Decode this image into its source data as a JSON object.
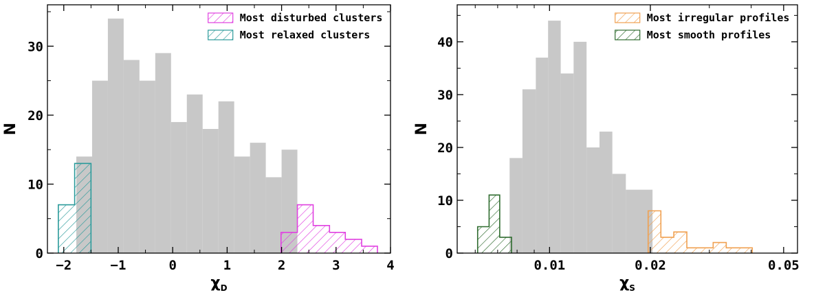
{
  "colors": {
    "background_hist": "#c8c8c8",
    "disturbed": "#e040e0",
    "relaxed": "#2a9a9a",
    "irregular": "#f0a050",
    "smooth": "#2e6b2e"
  },
  "chart_data": [
    {
      "type": "bar",
      "histogram": true,
      "xlabel": "χ_D",
      "xlabel_main": "χ",
      "xlabel_sub": "D",
      "ylabel": "N",
      "xlim": [
        -2.3,
        4.0
      ],
      "ylim": [
        0,
        36
      ],
      "xticks": [
        -2,
        -1,
        0,
        1,
        2,
        3,
        4
      ],
      "xtick_labels": [
        "−2",
        "−1",
        "0",
        "1",
        "2",
        "3",
        "4"
      ],
      "yticks": [
        0,
        10,
        20,
        30
      ],
      "ytick_labels": [
        "0",
        "10",
        "20",
        "30"
      ],
      "legend_position": "top-right",
      "series": [
        {
          "name": "",
          "style": "filled",
          "bins": [
            [
              -1.77,
              -1.48,
              14
            ],
            [
              -1.48,
              -1.19,
              25
            ],
            [
              -1.19,
              -0.9,
              34
            ],
            [
              -0.9,
              -0.61,
              28
            ],
            [
              -0.61,
              -0.32,
              25
            ],
            [
              -0.32,
              -0.03,
              29
            ],
            [
              -0.03,
              0.26,
              19
            ],
            [
              0.26,
              0.55,
              23
            ],
            [
              0.55,
              0.84,
              18
            ],
            [
              0.84,
              1.13,
              22
            ],
            [
              1.13,
              1.42,
              14
            ],
            [
              1.42,
              1.71,
              16
            ],
            [
              1.71,
              2.0,
              11
            ],
            [
              2.0,
              2.29,
              15
            ]
          ]
        },
        {
          "name": "Most disturbed clusters",
          "style": "hatched",
          "color_key": "disturbed",
          "bins": [
            [
              1.99,
              2.29,
              3
            ],
            [
              2.29,
              2.58,
              7
            ],
            [
              2.58,
              2.88,
              4
            ],
            [
              2.88,
              3.17,
              3
            ],
            [
              3.17,
              3.47,
              2
            ],
            [
              3.47,
              3.76,
              1
            ]
          ]
        },
        {
          "name": "Most relaxed clusters",
          "style": "hatched",
          "color_key": "relaxed",
          "bins": [
            [
              -2.1,
              -1.8,
              7
            ],
            [
              -1.8,
              -1.5,
              13
            ]
          ]
        }
      ]
    },
    {
      "type": "bar",
      "histogram": true,
      "xlabel": "χ_S",
      "xlabel_main": "χ",
      "xlabel_sub": "S",
      "ylabel": "N",
      "xscale": "log",
      "xlim": [
        0.0053,
        0.055
      ],
      "ylim": [
        0,
        47
      ],
      "xticks": [
        0.01,
        0.02,
        0.05
      ],
      "xtick_labels": [
        "0.01",
        "0.02",
        "0.05"
      ],
      "yticks": [
        0,
        10,
        20,
        30,
        40
      ],
      "ytick_labels": [
        "0",
        "10",
        "20",
        "30",
        "40"
      ],
      "legend_position": "top-right",
      "series": [
        {
          "name": "",
          "style": "filled",
          "bins": [
            [
              0.0076,
              0.0083,
              18
            ],
            [
              0.0083,
              0.0091,
              31
            ],
            [
              0.0091,
              0.0099,
              37
            ],
            [
              0.0099,
              0.0108,
              44
            ],
            [
              0.0108,
              0.0118,
              34
            ],
            [
              0.0118,
              0.0129,
              40
            ],
            [
              0.0129,
              0.0141,
              20
            ],
            [
              0.0141,
              0.0154,
              23
            ],
            [
              0.0154,
              0.0169,
              15
            ],
            [
              0.0169,
              0.0185,
              12
            ],
            [
              0.0185,
              0.0203,
              12
            ]
          ]
        },
        {
          "name": "Most irregular profiles",
          "style": "hatched",
          "color_key": "irregular",
          "bins": [
            [
              0.0197,
              0.0215,
              8
            ],
            [
              0.0215,
              0.0235,
              3
            ],
            [
              0.0235,
              0.0257,
              4
            ],
            [
              0.0257,
              0.0281,
              1
            ],
            [
              0.0281,
              0.0308,
              1
            ],
            [
              0.0308,
              0.0337,
              2
            ],
            [
              0.0337,
              0.0368,
              1
            ],
            [
              0.0368,
              0.0403,
              1
            ]
          ]
        },
        {
          "name": "Most smooth profiles",
          "style": "hatched",
          "color_key": "smooth",
          "bins": [
            [
              0.0061,
              0.0066,
              5
            ],
            [
              0.0066,
              0.0071,
              11
            ],
            [
              0.0071,
              0.0077,
              3
            ]
          ]
        }
      ]
    }
  ]
}
